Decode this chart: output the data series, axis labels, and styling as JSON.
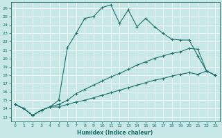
{
  "xlabel": "Humidex (Indice chaleur)",
  "xlim": [
    -0.5,
    23.5
  ],
  "ylim": [
    12.5,
    26.7
  ],
  "xticks": [
    0,
    1,
    2,
    3,
    4,
    5,
    6,
    7,
    8,
    9,
    10,
    11,
    12,
    13,
    14,
    15,
    16,
    17,
    18,
    19,
    20,
    21,
    22,
    23
  ],
  "yticks": [
    13,
    14,
    15,
    16,
    17,
    18,
    19,
    20,
    21,
    22,
    23,
    24,
    25,
    26
  ],
  "bg_color": "#c8e8e8",
  "line_color": "#1a7068",
  "grid_color": "#b8d8d8",
  "line1_x": [
    0,
    1,
    2,
    3,
    4,
    5,
    6,
    7,
    8,
    9,
    10,
    11,
    12,
    13,
    14,
    15,
    16,
    17,
    18,
    19,
    20,
    21,
    22,
    23
  ],
  "line1_y": [
    14.5,
    14.0,
    13.2,
    13.8,
    14.2,
    15.0,
    21.3,
    23.0,
    24.8,
    25.0,
    26.1,
    26.4,
    24.2,
    25.8,
    23.8,
    24.8,
    23.8,
    23.0,
    22.3,
    22.2,
    22.2,
    20.3,
    18.5,
    18.0
  ],
  "line2_x": [
    0,
    1,
    2,
    3,
    4,
    5,
    6,
    7,
    8,
    9,
    10,
    11,
    12,
    13,
    14,
    15,
    16,
    17,
    18,
    19,
    20,
    21,
    22,
    23
  ],
  "line2_y": [
    14.5,
    14.0,
    13.2,
    13.8,
    14.2,
    14.5,
    15.0,
    15.8,
    16.3,
    16.8,
    17.3,
    17.8,
    18.2,
    18.7,
    19.2,
    19.6,
    20.0,
    20.3,
    20.6,
    20.8,
    21.2,
    21.1,
    18.5,
    18.0
  ],
  "line3_x": [
    0,
    1,
    2,
    3,
    4,
    5,
    6,
    7,
    8,
    9,
    10,
    11,
    12,
    13,
    14,
    15,
    16,
    17,
    18,
    19,
    20,
    21,
    22,
    23
  ],
  "line3_y": [
    14.5,
    14.0,
    13.2,
    13.8,
    14.2,
    14.2,
    14.5,
    14.8,
    15.0,
    15.3,
    15.6,
    15.9,
    16.2,
    16.5,
    16.8,
    17.1,
    17.4,
    17.6,
    17.9,
    18.1,
    18.3,
    18.1,
    18.5,
    18.0
  ]
}
